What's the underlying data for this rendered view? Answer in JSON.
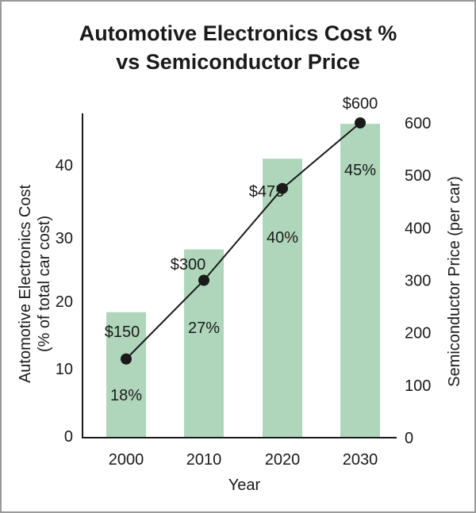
{
  "chart_data": {
    "type": "bar",
    "title": [
      "Automotive Electronics Cost %",
      "vs Semiconductor Price"
    ],
    "categories": [
      "2000",
      "2010",
      "2020",
      "2030"
    ],
    "xlabel": "Year",
    "series": [
      {
        "name": "Automotive Electronics Cost",
        "type": "bar",
        "axis": "left",
        "values": [
          18,
          27,
          40,
          45
        ],
        "labels": [
          "18%",
          "27%",
          "40%",
          "45%"
        ],
        "color": "#afd6bb"
      },
      {
        "name": "Semiconductor Price",
        "type": "line",
        "axis": "right",
        "values": [
          150,
          300,
          475,
          600
        ],
        "labels": [
          "$150",
          "$300",
          "$475",
          "$600"
        ],
        "color": "#1a1a1a"
      }
    ],
    "ylabel_left": [
      "Automotive Electronics Cost",
      "(% of total car cost)"
    ],
    "ylabel_right": "Semiconductor Price (per car)",
    "yticks_left": [
      "0",
      "10",
      "20",
      "30",
      "40"
    ],
    "yticks_right": [
      "0",
      "100",
      "200",
      "300",
      "400",
      "500",
      "600"
    ],
    "ylim_left": [
      0,
      46.5
    ],
    "ylim_right": [
      0,
      600
    ],
    "grid": false,
    "legend": "none"
  }
}
